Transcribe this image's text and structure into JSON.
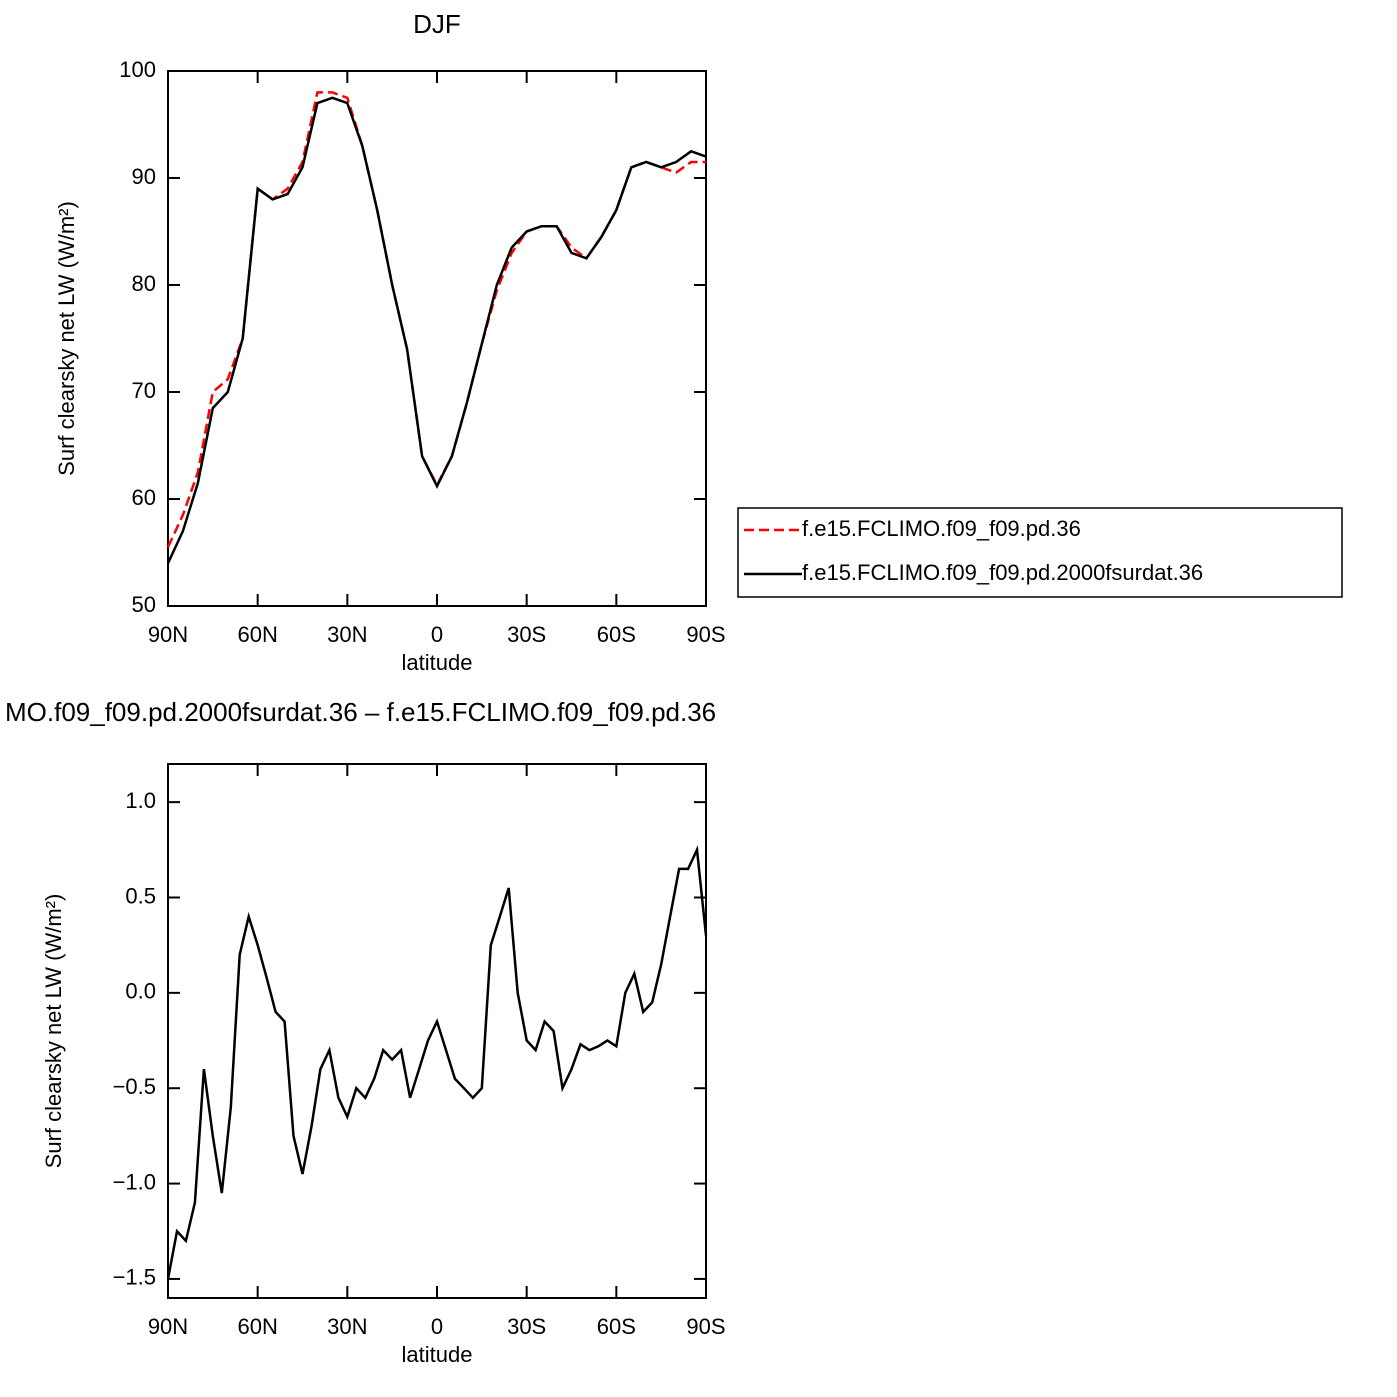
{
  "chart_data": [
    {
      "type": "line",
      "title": "DJF",
      "x_label": "latitude",
      "y_label": "Surf clearsky net LW (W/m²)",
      "x": [
        90,
        85,
        80,
        75,
        70,
        65,
        60,
        55,
        50,
        45,
        40,
        35,
        30,
        25,
        20,
        15,
        10,
        5,
        0,
        -5,
        -10,
        -15,
        -20,
        -25,
        -30,
        -35,
        -40,
        -45,
        -50,
        -55,
        -60,
        -65,
        -70,
        -75,
        -80,
        -85,
        -90
      ],
      "xlim": [
        90,
        -90
      ],
      "xticks": [
        {
          "value": 90,
          "label": "90N"
        },
        {
          "value": 60,
          "label": "60N"
        },
        {
          "value": 30,
          "label": "30N"
        },
        0,
        {
          "value": -30,
          "label": "30S"
        },
        {
          "value": -60,
          "label": "60S"
        },
        {
          "value": -90,
          "label": "90S"
        }
      ],
      "ylim": [
        50,
        100
      ],
      "yticks": [
        50,
        60,
        70,
        80,
        90,
        100
      ],
      "legend": "right",
      "series": [
        {
          "name": "f.e15.FCLIMO.f09_f09.pd.36",
          "color": "#ff0000",
          "dash": true,
          "values": [
            55.5,
            58.5,
            62.5,
            70,
            71.2,
            75,
            89,
            88,
            89,
            91.5,
            98,
            98,
            97.5,
            93,
            87,
            80,
            74,
            64,
            61.3,
            64,
            69,
            74.5,
            79.5,
            83,
            85,
            85.5,
            85.5,
            83.5,
            82.5,
            84.5,
            87,
            91,
            91.5,
            91,
            90.5,
            91.5,
            91.5
          ]
        },
        {
          "name": "f.e15.FCLIMO.f09_f09.pd.2000fsurdat.36",
          "color": "#000000",
          "dash": false,
          "values": [
            54,
            57,
            61.5,
            68.5,
            70,
            75,
            89,
            88,
            88.5,
            91,
            97,
            97.5,
            97,
            93,
            87,
            80,
            74,
            64,
            61.2,
            64,
            69,
            74.5,
            80,
            83.5,
            85,
            85.5,
            85.5,
            83,
            82.5,
            84.5,
            87,
            91,
            91.5,
            91,
            91.5,
            92.5,
            92
          ]
        }
      ]
    },
    {
      "type": "line",
      "title": "MO.f09_f09.pd.2000fsurdat.36 – f.e15.FCLIMO.f09_f09.pd.36",
      "x_label": "latitude",
      "y_label": "Surf clearsky net LW (W/m²)",
      "x": [
        90,
        87,
        84,
        81,
        78,
        75,
        72,
        69,
        66,
        63,
        60,
        57,
        54,
        51,
        48,
        45,
        42,
        39,
        36,
        33,
        30,
        27,
        24,
        21,
        18,
        15,
        12,
        9,
        6,
        3,
        0,
        -3,
        -6,
        -9,
        -12,
        -15,
        -18,
        -21,
        -24,
        -27,
        -30,
        -33,
        -36,
        -39,
        -42,
        -45,
        -48,
        -51,
        -54,
        -57,
        -60,
        -63,
        -66,
        -69,
        -72,
        -75,
        -78,
        -81,
        -84,
        -87,
        -90
      ],
      "xlim": [
        90,
        -90
      ],
      "xticks": [
        {
          "value": 90,
          "label": "90N"
        },
        {
          "value": 60,
          "label": "60N"
        },
        {
          "value": 30,
          "label": "30N"
        },
        0,
        {
          "value": -30,
          "label": "30S"
        },
        {
          "value": -60,
          "label": "60S"
        },
        {
          "value": -90,
          "label": "90S"
        }
      ],
      "ylim": [
        -1.6,
        1.2
      ],
      "yticks": [
        {
          "value": -1.5,
          "label": "−1.5"
        },
        {
          "value": -1,
          "label": "−1.0"
        },
        {
          "value": -0.5,
          "label": "−0.5"
        },
        {
          "value": 0,
          "label": "0.0"
        },
        0.5,
        {
          "value": 1,
          "label": "1.0"
        }
      ],
      "series": [
        {
          "color": "#000000",
          "dash": false,
          "values": [
            -1.5,
            -1.25,
            -1.3,
            -1.1,
            -0.4,
            -0.75,
            -1.05,
            -0.6,
            0.2,
            0.4,
            0.25,
            0.08,
            -0.1,
            -0.15,
            -0.75,
            -0.95,
            -0.7,
            -0.4,
            -0.3,
            -0.55,
            -0.65,
            -0.5,
            -0.55,
            -0.45,
            -0.3,
            -0.35,
            -0.3,
            -0.55,
            -0.4,
            -0.25,
            -0.15,
            -0.3,
            -0.45,
            -0.5,
            -0.55,
            -0.5,
            0.25,
            0.4,
            0.55,
            0,
            -0.25,
            -0.3,
            -0.15,
            -0.2,
            -0.5,
            -0.4,
            -0.27,
            -0.3,
            -0.28,
            -0.25,
            -0.28,
            0,
            0.1,
            -0.1,
            -0.05,
            0.15,
            0.4,
            0.65,
            0.65,
            0.75,
            0.3
          ]
        }
      ]
    }
  ]
}
